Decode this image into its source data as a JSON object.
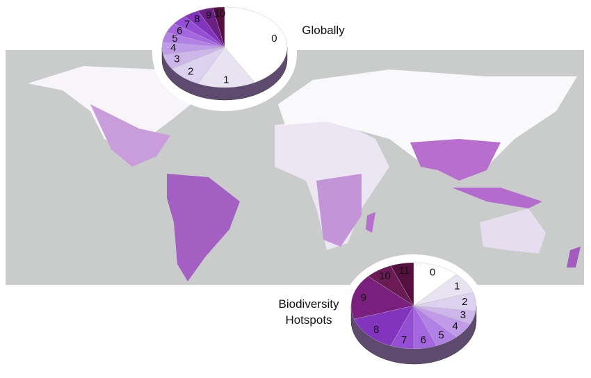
{
  "chart_data": [
    {
      "type": "pie",
      "title": "Globally",
      "categories": [
        "0",
        "1",
        "2",
        "3",
        "4",
        "5",
        "6",
        "7",
        "8",
        "9",
        "10"
      ],
      "values": [
        42,
        15,
        9,
        6,
        5,
        4,
        4,
        4,
        4,
        4,
        3
      ],
      "colors": [
        "#ffffff",
        "#e8e3f1",
        "#dcd1ee",
        "#cdb6ea",
        "#c09ce8",
        "#b281e5",
        "#a567e1",
        "#964dd6",
        "#8234bf",
        "#6a1e86",
        "#561040"
      ]
    },
    {
      "type": "pie",
      "title": "Biodiversity Hotspots",
      "categories": [
        "0",
        "1",
        "2",
        "3",
        "4",
        "5",
        "6",
        "7",
        "8",
        "9",
        "10",
        "11"
      ],
      "values": [
        12,
        8,
        7,
        5,
        6,
        6,
        6,
        6,
        14,
        17,
        7,
        6
      ],
      "colors": [
        "#ffffff",
        "#e8e3f1",
        "#dcd1ee",
        "#cdb6ea",
        "#c09ce8",
        "#b281e5",
        "#a567e1",
        "#964dd6",
        "#8234bf",
        "#7a1f7e",
        "#6a1a55",
        "#561040"
      ]
    }
  ]
}
